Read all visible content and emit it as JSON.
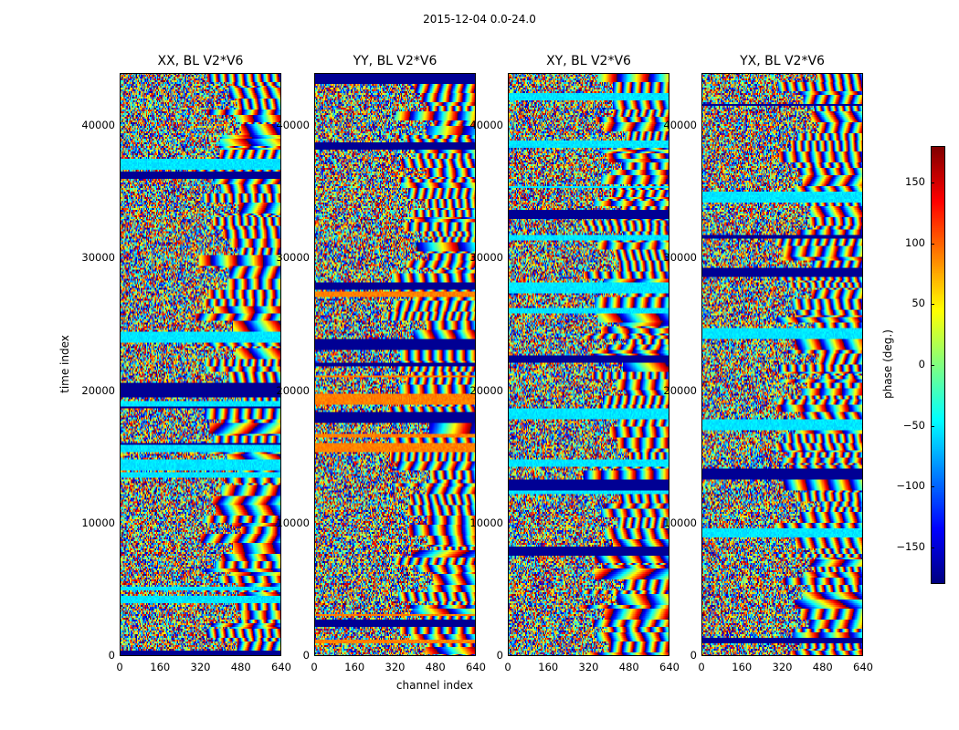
{
  "chart_data": {
    "type": "heatmap",
    "title": "2015-12-04 0.0-24.0",
    "xlabel": "channel index",
    "ylabel": "time index",
    "xlim": [
      0,
      640
    ],
    "ylim": [
      0,
      44000
    ],
    "xticks": [
      0,
      160,
      320,
      480,
      640
    ],
    "yticks": [
      0,
      10000,
      20000,
      30000,
      40000
    ],
    "panels": [
      {
        "name": "XX",
        "title": "XX, BL V2*V6"
      },
      {
        "name": "YY",
        "title": "YY, BL V2*V6"
      },
      {
        "name": "XY",
        "title": "XY, BL V2*V6"
      },
      {
        "name": "YX",
        "title": "YX, BL V2*V6"
      }
    ],
    "colorbar": {
      "label": "phase (deg.)",
      "range": [
        -180,
        180
      ],
      "ticks": [
        150,
        100,
        50,
        0,
        -50,
        -100,
        -150
      ],
      "tick_labels": [
        "150",
        "100",
        "50",
        "0",
        "−50",
        "−100",
        "−150"
      ],
      "colormap": "jet"
    }
  }
}
